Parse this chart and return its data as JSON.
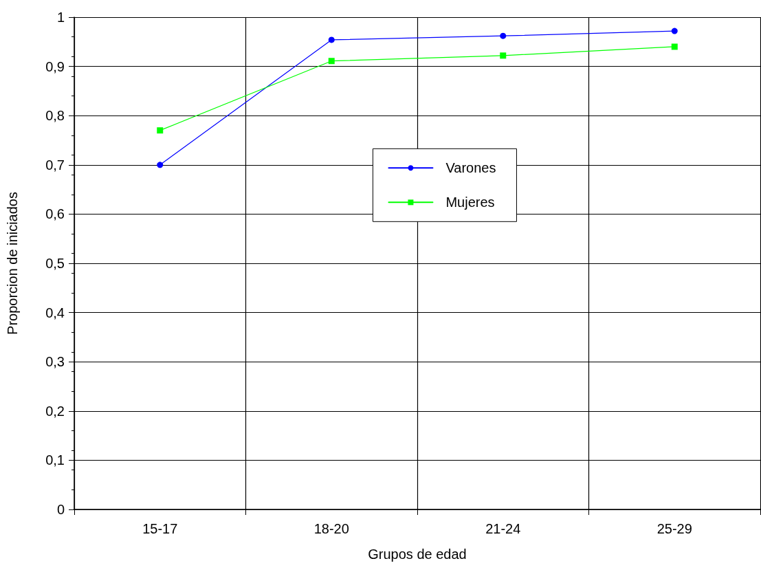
{
  "chart_data": {
    "type": "line",
    "xlabel": "Grupos de edad",
    "ylabel": "Proporcion de iniciados",
    "categories": [
      "15-17",
      "18-20",
      "21-24",
      "25-29"
    ],
    "series": [
      {
        "name": "Varones",
        "color": "#0000ff",
        "marker": "circle",
        "values": [
          0.7,
          0.954,
          0.962,
          0.972
        ]
      },
      {
        "name": "Mujeres",
        "color": "#00ff00",
        "marker": "square",
        "values": [
          0.77,
          0.911,
          0.922,
          0.94
        ]
      }
    ],
    "ylim": [
      0,
      1
    ],
    "yticks": [
      0,
      {
        "value": 0.1,
        "label": "0,1"
      },
      {
        "value": 0.2,
        "label": "0,2"
      },
      {
        "value": 0.3,
        "label": "0,3"
      },
      {
        "value": 0.4,
        "label": "0,4"
      },
      {
        "value": 0.5,
        "label": "0,5"
      },
      {
        "value": 0.6,
        "label": "0,6"
      },
      {
        "value": 0.7,
        "label": "0,7"
      },
      {
        "value": 0.8,
        "label": "0,8"
      },
      {
        "value": 0.9,
        "label": "0,9"
      },
      1
    ],
    "grid": true,
    "legend": "center",
    "line_style": "solid"
  }
}
